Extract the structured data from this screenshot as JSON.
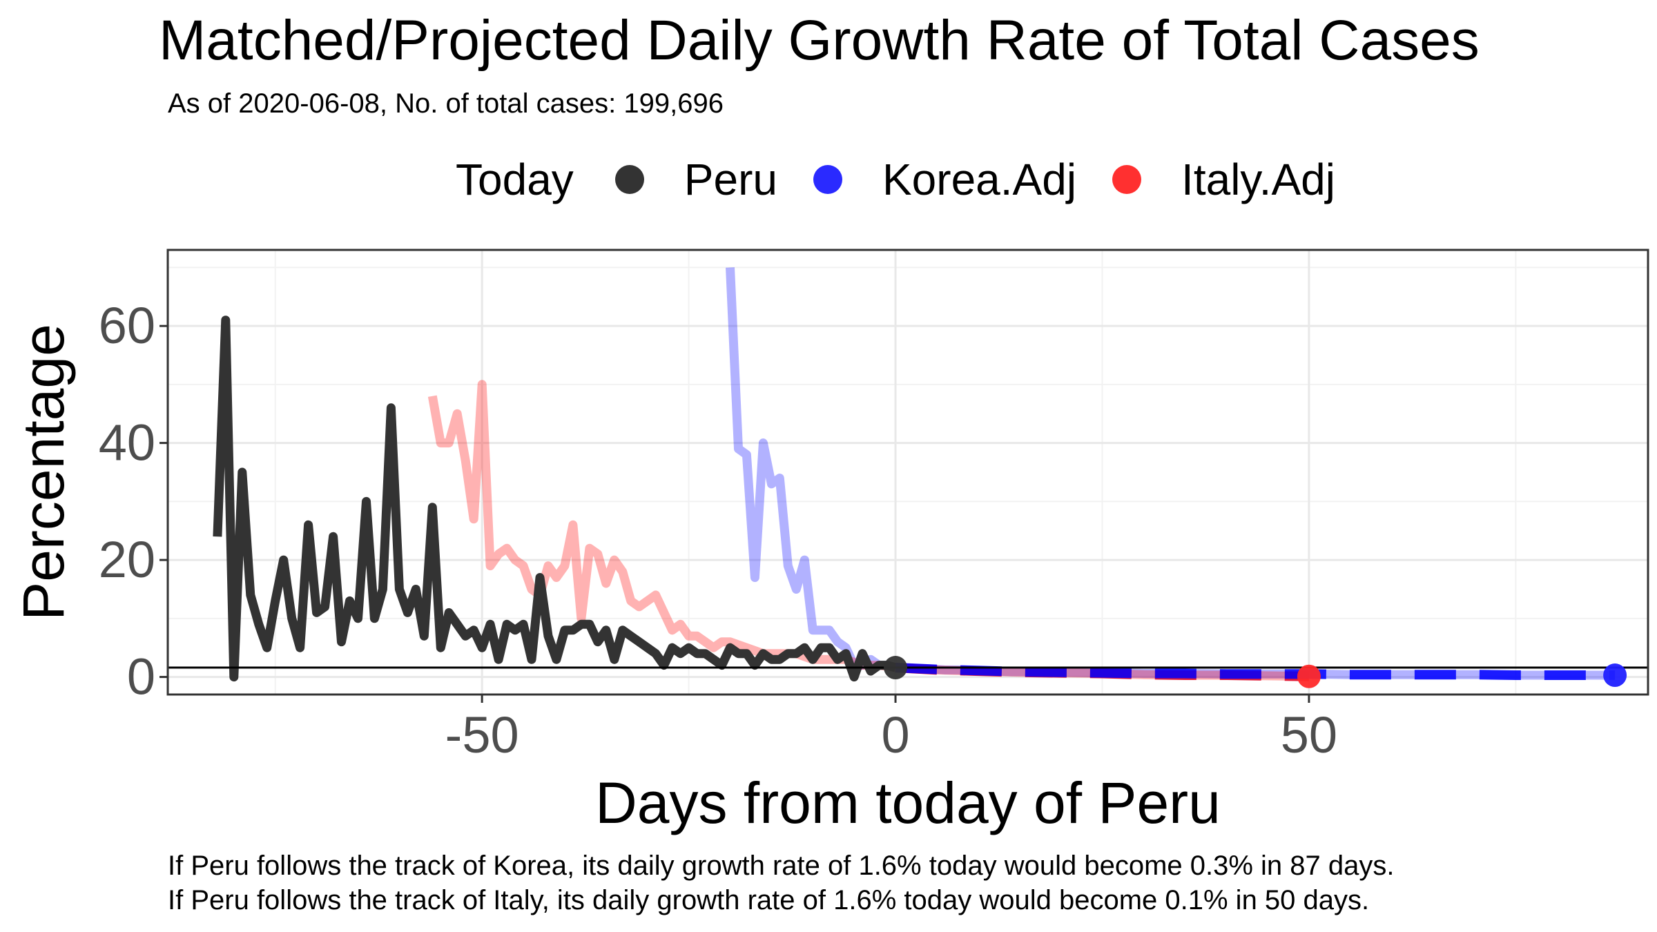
{
  "chart_data": {
    "type": "line",
    "title": "Matched/Projected Daily Growth Rate of Total Cases",
    "subtitle": "As of 2020-06-08, No. of total cases: 199,696",
    "xlabel": "Days from today of Peru",
    "ylabel": "Percentage",
    "xlim": [
      -88,
      91
    ],
    "ylim": [
      -3,
      73
    ],
    "xticks": [
      -50,
      0,
      50
    ],
    "yticks": [
      0,
      20,
      40,
      60
    ],
    "grid": true,
    "legend": {
      "title": "Today",
      "position": "top"
    },
    "reference_line_y": 1.6,
    "series": [
      {
        "name": "Peru",
        "color": "#333333",
        "opacity": 1,
        "x": [
          -82,
          -81,
          -80,
          -79,
          -78,
          -77,
          -76,
          -75,
          -74,
          -73,
          -72,
          -71,
          -70,
          -69,
          -68,
          -67,
          -66,
          -65,
          -64,
          -63,
          -62,
          -61,
          -60,
          -59,
          -58,
          -57,
          -56,
          -55,
          -54,
          -53,
          -52,
          -51,
          -50,
          -49,
          -48,
          -47,
          -46,
          -45,
          -44,
          -43,
          -42,
          -41,
          -40,
          -39,
          -38,
          -37,
          -36,
          -35,
          -34,
          -33,
          -32,
          -31,
          -30,
          -29,
          -28,
          -27,
          -26,
          -25,
          -24,
          -23,
          -22,
          -21,
          -20,
          -19,
          -18,
          -17,
          -16,
          -15,
          -14,
          -13,
          -12,
          -11,
          -10,
          -9,
          -8,
          -7,
          -6,
          -5,
          -4,
          -3,
          -2,
          -1,
          0
        ],
        "y": [
          24,
          61,
          0,
          35,
          14,
          9,
          5,
          13,
          20,
          10,
          5,
          26,
          11,
          12,
          24,
          6,
          13,
          10,
          30,
          10,
          15,
          46,
          15,
          11,
          15,
          7,
          29,
          5,
          11,
          9,
          7,
          8,
          5,
          9,
          3,
          9,
          8,
          9,
          3,
          17,
          7,
          3,
          8,
          8,
          9,
          9,
          6,
          8,
          3,
          8,
          7,
          6,
          5,
          4,
          2,
          5,
          4,
          5,
          4,
          4,
          3,
          2,
          5,
          4,
          4,
          2,
          4,
          3,
          3,
          4,
          4,
          5,
          3,
          5,
          5,
          3,
          4,
          0,
          4,
          1,
          2,
          2,
          1.6
        ]
      },
      {
        "name": "Korea.Adj",
        "color": "#0000ff",
        "opacity": 0.3,
        "x": [
          -20,
          -19,
          -18,
          -17,
          -16,
          -15,
          -14,
          -13,
          -12,
          -11,
          -10,
          -9,
          -8,
          -7,
          -6,
          -5,
          -4,
          -3,
          -2,
          -1,
          0,
          2,
          4,
          6,
          8,
          10,
          12,
          14,
          16,
          18,
          20,
          25,
          30,
          35,
          40,
          45,
          50,
          55,
          60,
          65,
          70,
          75,
          80,
          87
        ],
        "y": [
          70,
          39,
          38,
          17,
          40,
          33,
          34,
          19,
          15,
          20,
          8,
          8,
          8,
          6,
          5,
          2,
          2,
          3,
          2,
          2,
          1.6,
          1.5,
          1.4,
          1.2,
          1.2,
          1.1,
          1.0,
          0.9,
          0.9,
          0.8,
          0.8,
          0.7,
          0.6,
          0.6,
          0.5,
          0.5,
          0.5,
          0.4,
          0.4,
          0.4,
          0.4,
          0.3,
          0.3,
          0.3
        ]
      },
      {
        "name": "Italy.Adj",
        "color": "#ff0000",
        "opacity": 0.3,
        "x": [
          -56,
          -55,
          -54,
          -53,
          -52,
          -51,
          -50,
          -49,
          -48,
          -47,
          -46,
          -45,
          -44,
          -43,
          -42,
          -41,
          -40,
          -39,
          -38,
          -37,
          -36,
          -35,
          -34,
          -33,
          -32,
          -31,
          -30,
          -29,
          -28,
          -27,
          -26,
          -25,
          -24,
          -23,
          -22,
          -21,
          -20,
          -18,
          -16,
          -14,
          -12,
          -10,
          -8,
          -6,
          -4,
          -2,
          0,
          2,
          5,
          10,
          15,
          20,
          25,
          30,
          35,
          40,
          45,
          50
        ],
        "y": [
          48,
          40,
          40,
          45,
          37,
          27,
          50,
          19,
          21,
          22,
          20,
          19,
          15,
          14,
          19,
          17,
          19,
          26,
          10,
          22,
          21,
          16,
          20,
          18,
          13,
          12,
          13,
          14,
          11,
          8,
          9,
          7,
          7,
          6,
          5,
          6,
          6,
          5,
          4,
          4,
          4,
          3,
          3,
          3,
          2,
          2,
          1.6,
          1.4,
          1.2,
          1.0,
          0.8,
          0.7,
          0.6,
          0.4,
          0.3,
          0.3,
          0.2,
          0.1
        ]
      },
      {
        "name": "Korea.Adj (projected)",
        "color": "#0000ff",
        "opacity": 1,
        "dashed": true,
        "x": [
          0,
          5,
          10,
          15,
          20,
          25,
          30,
          35,
          40,
          45,
          50,
          55,
          60,
          65,
          70,
          75,
          80,
          87
        ],
        "y": [
          1.6,
          1.3,
          1.1,
          0.9,
          0.8,
          0.7,
          0.6,
          0.6,
          0.5,
          0.5,
          0.5,
          0.4,
          0.4,
          0.4,
          0.4,
          0.3,
          0.3,
          0.3
        ]
      },
      {
        "name": "Italy.Adj (projected)",
        "color": "#dd0022",
        "opacity": 1,
        "dashed": true,
        "x": [
          0,
          5,
          10,
          15,
          20,
          25,
          30,
          35,
          40,
          45,
          50
        ],
        "y": [
          1.6,
          1.2,
          1.0,
          0.8,
          0.7,
          0.6,
          0.4,
          0.3,
          0.3,
          0.2,
          0.1
        ]
      }
    ],
    "today_points": [
      {
        "name": "Peru",
        "x": 0,
        "y": 1.6,
        "color": "#333333"
      },
      {
        "name": "Korea.Adj",
        "x": 87,
        "y": 0.3,
        "color": "#2020ff"
      },
      {
        "name": "Italy.Adj",
        "x": 50,
        "y": 0.1,
        "color": "#ff2a2a"
      }
    ]
  },
  "legend_labels": {
    "title": "Today",
    "items": [
      {
        "label": "Peru",
        "color": "#333333"
      },
      {
        "label": "Korea.Adj",
        "color": "#2a2aff"
      },
      {
        "label": "Italy.Adj",
        "color": "#ff3030"
      }
    ]
  },
  "captions": {
    "korea": "If Peru follows the track of Korea, its daily growth rate of 1.6% today would become 0.3% in 87 days.",
    "italy": "If Peru follows the track of Italy, its daily growth rate of 1.6% today would become 0.1% in 50 days."
  }
}
